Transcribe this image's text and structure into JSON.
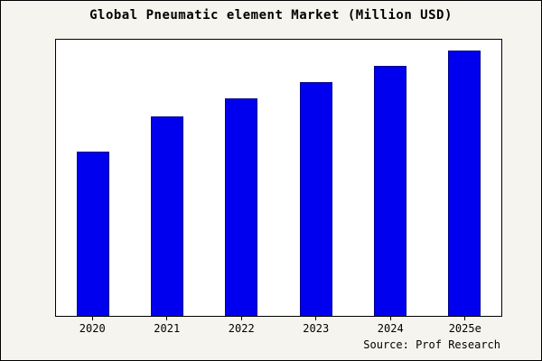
{
  "title": "Global Pneumatic element Market (Million USD)",
  "source": "Source: Prof Research",
  "colors": {
    "bar_fill": "#0000ee",
    "bar_edge": "#00008b",
    "background": "#f5f4ee",
    "plot_background": "#ffffff"
  },
  "chart_data": {
    "type": "bar",
    "title": "Global Pneumatic element Market (Million USD)",
    "categories": [
      "2020",
      "2021",
      "2022",
      "2023",
      "2024",
      "2025e"
    ],
    "values": [
      62,
      75,
      82,
      88,
      94,
      100
    ],
    "xlabel": "",
    "ylabel": "",
    "ylim": [
      0,
      104
    ],
    "grid": false,
    "legend": "none",
    "annotations": [
      "Source: Prof Research"
    ],
    "bar_color": "#0000ee",
    "bar_edge_color": "#00008b"
  }
}
